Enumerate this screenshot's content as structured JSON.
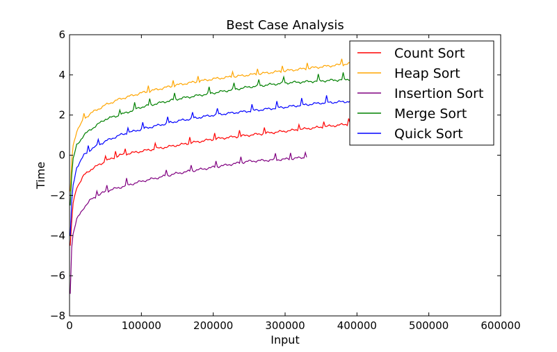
{
  "chart_data": {
    "type": "line",
    "title": "Best Case Analysis",
    "xlabel": "Input",
    "ylabel": "Time",
    "xlim": [
      0,
      600000
    ],
    "ylim": [
      -8,
      6
    ],
    "x_ticks": [
      0,
      100000,
      200000,
      300000,
      400000,
      500000,
      600000
    ],
    "y_ticks": [
      -8,
      -6,
      -4,
      -2,
      0,
      2,
      4,
      6
    ],
    "grid": false,
    "legend_position": "top-right",
    "series": [
      {
        "name": "Count Sort",
        "color": "#ff0000",
        "x": [
          1000,
          3000,
          5000,
          10000,
          20000,
          30000,
          50000,
          70000,
          100000,
          150000,
          200000,
          250000,
          300000,
          350000,
          400000
        ],
        "y": [
          -4.5,
          -3.3,
          -2.4,
          -1.6,
          -1.0,
          -0.7,
          -0.3,
          0.0,
          0.2,
          0.5,
          0.8,
          1.0,
          1.2,
          1.4,
          1.6
        ]
      },
      {
        "name": "Heap Sort",
        "color": "#ffa500",
        "x": [
          1000,
          3000,
          5000,
          10000,
          20000,
          30000,
          50000,
          70000,
          100000,
          150000,
          200000,
          250000,
          300000,
          350000,
          400000
        ],
        "y": [
          -1.8,
          -0.3,
          0.5,
          1.2,
          1.8,
          2.1,
          2.5,
          2.8,
          3.1,
          3.5,
          3.8,
          4.0,
          4.2,
          4.4,
          4.6
        ]
      },
      {
        "name": "Insertion Sort",
        "color": "#800080",
        "x": [
          1000,
          3000,
          5000,
          10000,
          20000,
          30000,
          50000,
          70000,
          100000,
          150000,
          200000,
          250000,
          300000,
          330000
        ],
        "y": [
          -6.9,
          -4.6,
          -3.9,
          -3.2,
          -2.6,
          -2.2,
          -1.8,
          -1.6,
          -1.3,
          -0.9,
          -0.6,
          -0.3,
          -0.2,
          -0.1
        ]
      },
      {
        "name": "Merge Sort",
        "color": "#008000",
        "x": [
          1000,
          3000,
          5000,
          10000,
          20000,
          30000,
          50000,
          70000,
          100000,
          150000,
          200000,
          250000,
          300000,
          350000,
          400000
        ],
        "y": [
          -2.5,
          -1.0,
          -0.2,
          0.5,
          1.0,
          1.3,
          1.8,
          2.0,
          2.4,
          2.8,
          3.1,
          3.4,
          3.6,
          3.7,
          3.8
        ]
      },
      {
        "name": "Quick Sort",
        "color": "#0000ff",
        "x": [
          1000,
          3000,
          5000,
          10000,
          20000,
          30000,
          50000,
          70000,
          100000,
          150000,
          200000,
          250000,
          300000,
          350000,
          400000
        ],
        "y": [
          -4.0,
          -2.3,
          -1.5,
          -0.6,
          0.0,
          0.3,
          0.7,
          1.0,
          1.3,
          1.7,
          2.0,
          2.2,
          2.4,
          2.6,
          2.7
        ]
      }
    ]
  }
}
